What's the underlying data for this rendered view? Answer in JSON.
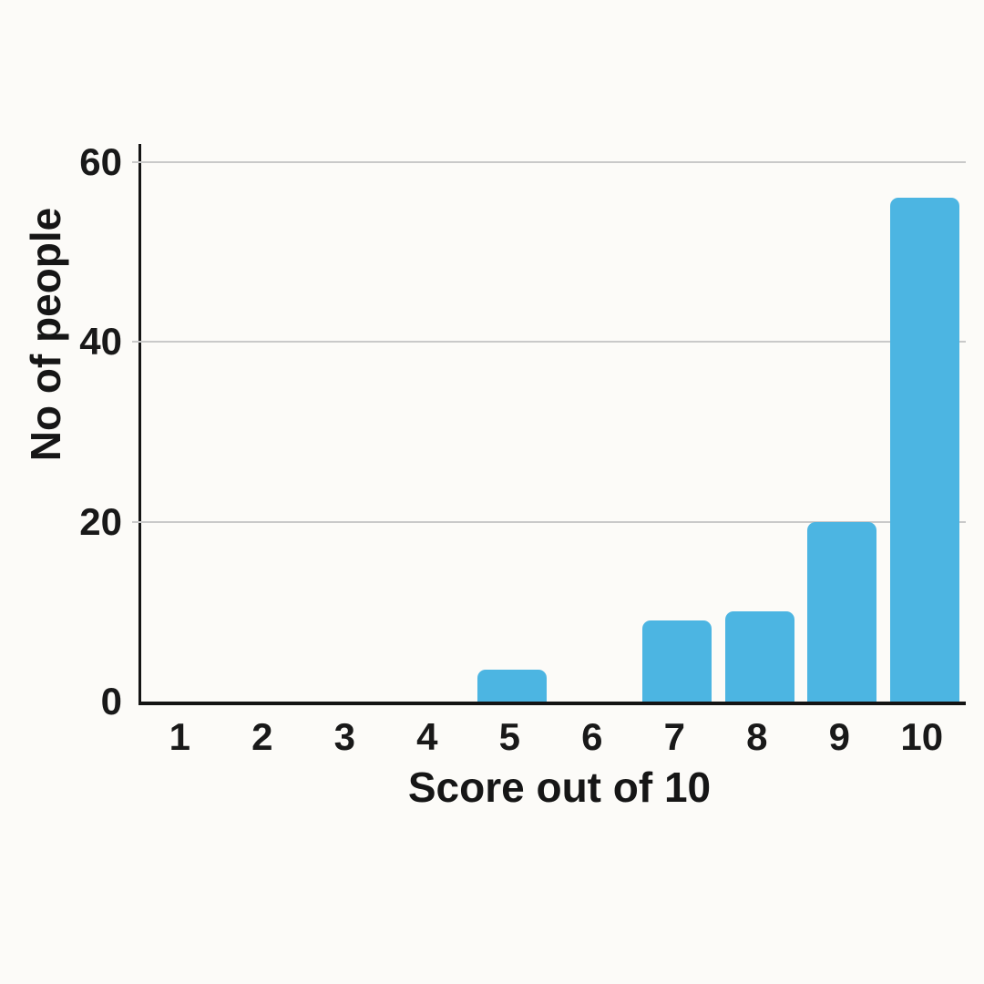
{
  "chart_data": {
    "type": "bar",
    "title": "",
    "xlabel": "Score out of 10",
    "ylabel": "No of people",
    "categories": [
      "1",
      "2",
      "3",
      "4",
      "5",
      "6",
      "7",
      "8",
      "9",
      "10"
    ],
    "values": [
      0,
      0,
      0,
      0,
      3.5,
      0,
      9,
      10,
      20,
      56
    ],
    "yticks": [
      0,
      20,
      40,
      60
    ],
    "ylim": [
      0,
      62
    ],
    "grid": true,
    "legend": "none",
    "bar_color": "#4cb5e2",
    "gridline_color": "#c9c9c9",
    "axis_color": "#141414",
    "background_color": "#fcfbf8"
  }
}
